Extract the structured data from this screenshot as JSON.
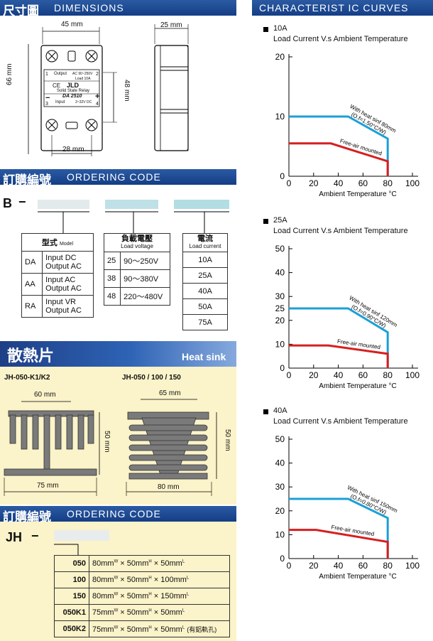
{
  "dimensions": {
    "title_zh": "尺寸圖",
    "title_en": "DIMENSIONS",
    "w45": "45 mm",
    "w25": "25 mm",
    "h66": "66 mm",
    "h48": "48 mm",
    "w28": "28 mm",
    "relay": {
      "output": "Output",
      "ac_range": "AC 90~250V",
      "current": "Load 10A",
      "ce": "CE",
      "brand": "JLD",
      "type": "Solid State Relay",
      "model": "DA 2510",
      "input": "Input",
      "dc_range": "3~32V DC",
      "minus": "−",
      "plus": "+",
      "t1": "1",
      "t2": "2",
      "t3": "3",
      "t4": "4"
    }
  },
  "ordering1": {
    "title_zh": "訂購編號",
    "title_en": "ORDERING CODE",
    "prefix": "B",
    "dash": "−",
    "model": {
      "header_zh": "型式",
      "header_en": "Model",
      "rows": [
        {
          "code": "DA",
          "line1": "Input DC",
          "line2": "Output AC"
        },
        {
          "code": "AA",
          "line1": "Input AC",
          "line2": "Output AC"
        },
        {
          "code": "RA",
          "line1": "Input VR",
          "line2": "Output AC"
        }
      ]
    },
    "voltage": {
      "header_zh": "負載電壓",
      "header_en": "Load voltage",
      "rows": [
        {
          "code": "25",
          "value": "90～250V"
        },
        {
          "code": "38",
          "value": "90～380V"
        },
        {
          "code": "48",
          "value": "220～480V"
        }
      ]
    },
    "current": {
      "header_zh": "電流",
      "header_en": "Load current",
      "rows": [
        "10A",
        "25A",
        "40A",
        "50A",
        "75A"
      ]
    }
  },
  "heatsink": {
    "title_zh": "散熱片",
    "title_en": "Heat sink",
    "model1": "JH-050-K1/K2",
    "model2": "JH-050 / 100 / 150",
    "d60": "60 mm",
    "d50a": "50 mm",
    "d75": "75 mm",
    "d65": "65 mm",
    "d50b": "50 mm",
    "d80": "80 mm"
  },
  "ordering2": {
    "title_zh": "訂購編號",
    "title_en": "ORDERING CODE",
    "prefix": "JH",
    "dash": "−",
    "rows": [
      {
        "code": "050",
        "a": "80mm",
        "b": "50mm",
        "c": "50mm",
        "note": ""
      },
      {
        "code": "100",
        "a": "80mm",
        "b": "50mm",
        "c": "100mm",
        "note": ""
      },
      {
        "code": "150",
        "a": "80mm",
        "b": "50mm",
        "c": "150mm",
        "note": ""
      },
      {
        "code": "050K1",
        "a": "75mm",
        "b": "50mm",
        "c": "50mm",
        "note": ""
      },
      {
        "code": "050K2",
        "a": "75mm",
        "b": "50mm",
        "c": "50mm",
        "note": "(有鋁軌孔)"
      }
    ],
    "sup_w": "W",
    "sup_h": "H",
    "sup_l": "L",
    "times": "×"
  },
  "curves_title": "CHARACTERIST IC CURVES",
  "chart_data": [
    {
      "type": "line",
      "title": "10A",
      "subtitle": "Load Current V.s Ambient Temperature",
      "xlabel": "Ambient  Temperature °C",
      "ylabel": "",
      "xlim": [
        0,
        100
      ],
      "ylim": [
        0,
        20
      ],
      "xticks": [
        0,
        20,
        40,
        60,
        80,
        100
      ],
      "yticks": [
        0,
        10,
        20
      ],
      "series": [
        {
          "name": "With heat sinf 80mm",
          "name2": "(O.f=1.50°C/W)",
          "color": "#1aa0d8",
          "x": [
            0,
            48,
            80,
            80
          ],
          "y": [
            10,
            10,
            6.3,
            0
          ]
        },
        {
          "name": "Free-air mounted",
          "color": "#d61f1f",
          "x": [
            0,
            34,
            80,
            80
          ],
          "y": [
            5.5,
            5.5,
            2.5,
            0
          ]
        }
      ]
    },
    {
      "type": "line",
      "title": "25A",
      "subtitle": "Load Current V.s Ambient Temperature",
      "xlabel": "Ambient  Temperature °C",
      "ylabel": "",
      "xlim": [
        0,
        100
      ],
      "ylim": [
        0,
        50
      ],
      "xticks": [
        0,
        20,
        40,
        60,
        80,
        100
      ],
      "yticks": [
        0,
        10,
        20,
        25,
        30,
        40,
        50
      ],
      "series": [
        {
          "name": "With heat sinf 120mm",
          "name2": "(O.f=0.90°C/W)",
          "color": "#1aa0d8",
          "x": [
            0,
            48,
            80,
            80
          ],
          "y": [
            25,
            25,
            15,
            0
          ]
        },
        {
          "name": "Free-air mounted",
          "color": "#d61f1f",
          "x": [
            0,
            32,
            80,
            80
          ],
          "y": [
            9.5,
            9.5,
            6,
            0
          ]
        }
      ]
    },
    {
      "type": "line",
      "title": "40A",
      "subtitle": "Load Current V.s Ambient Temperature",
      "xlabel": "Ambient  Temperature °C",
      "ylabel": "",
      "xlim": [
        0,
        100
      ],
      "ylim": [
        0,
        50
      ],
      "xticks": [
        0,
        20,
        40,
        60,
        80,
        100
      ],
      "yticks": [
        0,
        10,
        20,
        30,
        40,
        50
      ],
      "series": [
        {
          "name": "With heat sinf 150mm",
          "name2": "(O.f=0.80°C/W)",
          "color": "#1aa0d8",
          "x": [
            0,
            48,
            80,
            80
          ],
          "y": [
            25,
            25,
            17,
            0
          ]
        },
        {
          "name": "Free-air mounted",
          "color": "#d61f1f",
          "x": [
            0,
            22,
            80,
            80
          ],
          "y": [
            12,
            12,
            7,
            0
          ]
        }
      ]
    }
  ]
}
